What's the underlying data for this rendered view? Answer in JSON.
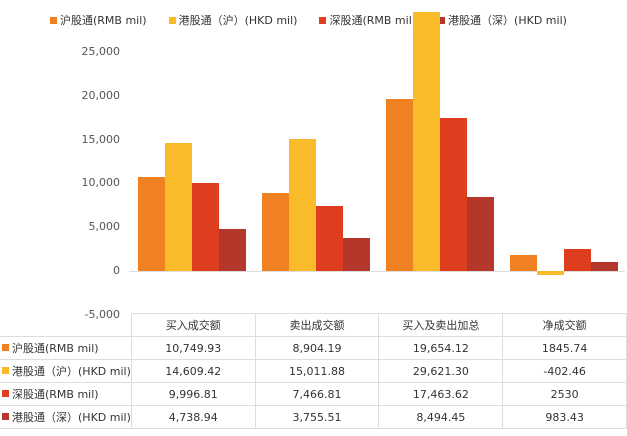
{
  "chart_data": {
    "type": "bar",
    "title": "",
    "xlabel": "",
    "ylabel": "",
    "ylim": [
      -5000,
      25000
    ],
    "yticks": [
      "25,000",
      "20,000",
      "15,000",
      "10,000",
      "5,000",
      "0",
      "-5,000"
    ],
    "grid": false,
    "legend_position": "top",
    "categories": [
      "买入成交额",
      "卖出成交额",
      "买入及卖出加总",
      "净成交额"
    ],
    "series": [
      {
        "name": "沪股通(RMB mil)",
        "color": "#F08122",
        "values": [
          10749.93,
          8904.19,
          19654.12,
          1845.74
        ],
        "display": [
          "10,749.93",
          "8,904.19",
          "19,654.12",
          "1845.74"
        ]
      },
      {
        "name": "港股通（沪）(HKD mil)",
        "color": "#F9BB2A",
        "values": [
          14609.42,
          15011.88,
          29621.3,
          -402.46
        ],
        "display": [
          "14,609.42",
          "15,011.88",
          "29,621.30",
          "-402.46"
        ]
      },
      {
        "name": "深股通(RMB mil)",
        "color": "#DE3E1E",
        "values": [
          9996.81,
          7466.81,
          17463.62,
          2530
        ],
        "display": [
          "9,996.81",
          "7,466.81",
          "17,463.62",
          "2530"
        ]
      },
      {
        "name": "港股通（深）(HKD mil)",
        "color": "#B5372C",
        "values": [
          4738.94,
          3755.51,
          8494.45,
          983.43
        ],
        "display": [
          "4,738.94",
          "3,755.51",
          "8,494.45",
          "983.43"
        ]
      }
    ]
  }
}
